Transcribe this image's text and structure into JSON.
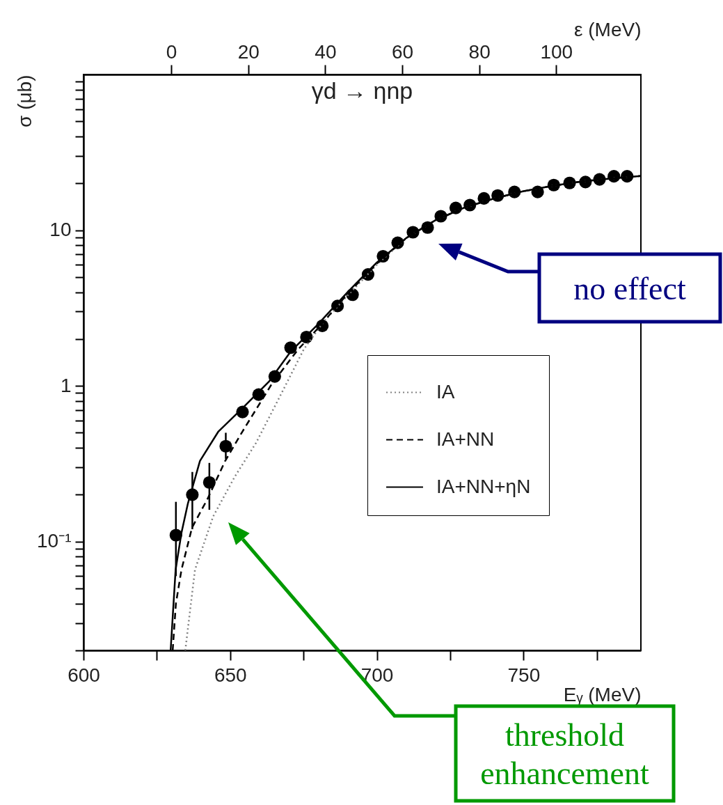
{
  "chart_data": {
    "type": "scatter",
    "title": "γd → ηnp",
    "xlabel": "Eᵧ (MeV)",
    "ylabel": "σ (μb)",
    "x2label": "ε (MeV)",
    "xlim": [
      600,
      790
    ],
    "xticks": [
      600,
      {
        "value": 625,
        "label": null
      },
      650,
      {
        "value": 675,
        "label": null
      },
      700,
      {
        "value": 725,
        "label": null
      },
      750,
      {
        "value": 775,
        "label": null
      }
    ],
    "x2lim": [
      -22.8,
      122
    ],
    "x2ticks": [
      0,
      20,
      40,
      60,
      80,
      100
    ],
    "ylim": [
      0.02,
      100
    ],
    "log": true,
    "yticks": [
      {
        "value": 0.02,
        "label": null
      },
      {
        "value": 0.03,
        "label": null
      },
      {
        "value": 0.04,
        "label": null
      },
      {
        "value": 0.05,
        "label": null
      },
      {
        "value": 0.06,
        "label": null
      },
      {
        "value": 0.07,
        "label": null
      },
      {
        "value": 0.08,
        "label": null
      },
      {
        "value": 0.09,
        "label": null
      },
      {
        "value": 0.1,
        "label": "10⁻¹"
      },
      {
        "value": 0.2,
        "label": null
      },
      {
        "value": 0.3,
        "label": null
      },
      {
        "value": 0.4,
        "label": null
      },
      {
        "value": 0.5,
        "label": null
      },
      {
        "value": 0.6,
        "label": null
      },
      {
        "value": 0.7,
        "label": null
      },
      {
        "value": 0.8,
        "label": null
      },
      {
        "value": 0.9,
        "label": null
      },
      1,
      {
        "value": 2,
        "label": null
      },
      {
        "value": 3,
        "label": null
      },
      {
        "value": 4,
        "label": null
      },
      {
        "value": 5,
        "label": null
      },
      {
        "value": 6,
        "label": null
      },
      {
        "value": 7,
        "label": null
      },
      {
        "value": 8,
        "label": null
      },
      {
        "value": 9,
        "label": null
      },
      10,
      {
        "value": 20,
        "label": null
      },
      {
        "value": 30,
        "label": null
      },
      {
        "value": 40,
        "label": null
      },
      {
        "value": 50,
        "label": null
      },
      {
        "value": 60,
        "label": null
      },
      {
        "value": 70,
        "label": null
      },
      {
        "value": 80,
        "label": null
      },
      {
        "value": 90,
        "label": null
      }
    ],
    "legend": "right",
    "grid": false,
    "series": [
      {
        "type": "scatter",
        "marker": "circle",
        "color": "#000000",
        "x": [
          631.5,
          637.1,
          642.9,
          648.5,
          654.2,
          659.7,
          665.2,
          670.6,
          676.0,
          681.4,
          686.6,
          691.7,
          697.0,
          702.1,
          707.1,
          712.3,
          717.3,
          721.8,
          726.9,
          731.7,
          736.5,
          741.2,
          746.9,
          754.8,
          760.3,
          765.7,
          771.1,
          775.9,
          780.8,
          785.3
        ],
        "values": [
          0.11,
          0.2,
          0.24,
          0.41,
          0.68,
          0.88,
          1.15,
          1.76,
          2.06,
          2.43,
          3.26,
          3.85,
          5.2,
          6.8,
          8.3,
          9.7,
          10.4,
          12.3,
          13.9,
          14.5,
          16.0,
          16.7,
          17.6,
          17.6,
          19.5,
          20.1,
          20.4,
          21.2,
          22.2,
          22.2
        ],
        "errors": [
          [
            0.06,
            0.18
          ],
          [
            0.12,
            0.28
          ],
          [
            0.16,
            0.32
          ],
          [
            0.34,
            0.5
          ],
          null,
          null,
          null,
          null,
          null,
          null,
          null,
          null,
          null,
          null,
          null,
          null,
          null,
          null,
          null,
          null,
          null,
          null,
          null,
          null,
          null,
          null,
          null,
          null,
          null,
          null
        ]
      },
      {
        "type": "line",
        "name": "IA",
        "color": "#808080",
        "line_style": "dotted",
        "x": [
          634.7,
          638.0,
          644.2,
          651.5,
          658.8,
          667.8,
          675.1,
          682,
          690,
          700,
          710,
          720,
          730,
          740,
          750,
          760,
          770,
          780,
          790
        ],
        "values": [
          0.02,
          0.066,
          0.145,
          0.26,
          0.43,
          0.92,
          1.72,
          2.6,
          3.8,
          6.0,
          8.9,
          11.6,
          14.0,
          16.0,
          17.8,
          19.3,
          20.6,
          21.5,
          22.3
        ]
      },
      {
        "type": "line",
        "name": "IA+NN",
        "color": "#000000",
        "line_style": "dashed",
        "x": [
          630.4,
          631.5,
          633.4,
          637.0,
          642.4,
          648.3,
          654.2,
          664.2,
          673.2,
          680,
          690,
          700,
          710,
          720,
          730,
          740,
          750,
          760,
          770,
          780,
          790
        ],
        "values": [
          0.02,
          0.04,
          0.066,
          0.123,
          0.19,
          0.33,
          0.51,
          1.03,
          1.72,
          2.35,
          3.9,
          6.1,
          8.9,
          11.6,
          14.0,
          16.0,
          17.8,
          19.3,
          20.6,
          21.5,
          22.3
        ]
      },
      {
        "type": "line",
        "name": "IA+NN+ηN",
        "color": "#000000",
        "line_style": "solid",
        "x": [
          629.7,
          631.4,
          633.4,
          635.6,
          639.7,
          646.0,
          654.2,
          663.3,
          670.6,
          679.6,
          690,
          700,
          710,
          720,
          730,
          740,
          750,
          760,
          770,
          780,
          790
        ],
        "values": [
          0.02,
          0.066,
          0.114,
          0.176,
          0.33,
          0.51,
          0.72,
          1.07,
          1.66,
          2.45,
          4.0,
          6.2,
          8.9,
          11.6,
          14.0,
          16.0,
          17.8,
          19.3,
          20.6,
          21.5,
          22.3
        ]
      }
    ],
    "annotations": [
      "no effect",
      "threshold enhancement"
    ]
  }
}
